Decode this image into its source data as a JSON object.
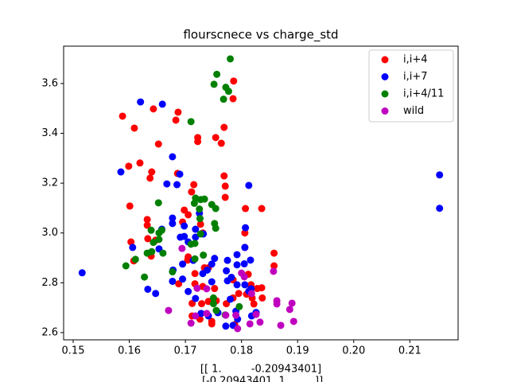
{
  "chart_data": {
    "type": "scatter",
    "title": "flourscnece vs charge_std",
    "xlabel": [
      "[[ 1.         -0.20943401]",
      " [-0.20943401  1.        ]]"
    ],
    "xlim": [
      0.1483,
      0.2186
    ],
    "ylim": [
      2.571,
      3.75
    ],
    "xticks": [
      0.15,
      0.16,
      0.17,
      0.18,
      0.19,
      {
        "value": 0.2,
        "label": "0.20"
      },
      0.21
    ],
    "yticks": [
      2.6,
      2.8,
      {
        "value": 3,
        "label": "3.0"
      },
      3.2,
      3.4,
      3.6
    ],
    "legend": "upper right",
    "series": [
      {
        "name": "i,i+4",
        "color": "#ff0000",
        "x": [
          0.1588,
          0.1609,
          0.1643,
          0.1687,
          0.1683,
          0.1786,
          0.1769,
          0.1722,
          0.1722,
          0.1754,
          0.1764,
          0.1785,
          0.1652,
          0.1619,
          0.1599,
          0.164,
          0.1637,
          0.1686,
          0.1769,
          0.1771,
          0.1715,
          0.1711,
          0.1771,
          0.1601,
          0.1807,
          0.1836,
          0.1698,
          0.1705,
          0.1632,
          0.1632,
          0.1695,
          0.1727,
          0.1731,
          0.1806,
          0.1633,
          0.1647,
          0.1603,
          0.1639,
          0.1806,
          0.1858,
          0.1858,
          0.1608,
          0.1704,
          0.1705,
          0.1734,
          0.1717,
          0.1741,
          0.1812,
          0.1817,
          0.1717,
          0.1688,
          0.1731,
          0.1752,
          0.1785,
          0.1817,
          0.1828,
          0.1795,
          0.1836,
          0.1837,
          0.1819,
          0.1712,
          0.1729,
          0.1741,
          0.1755,
          0.1773,
          0.1785,
          0.1809,
          0.1712,
          0.1726,
          0.1747,
          0.1747,
          0.1788,
          0.1822
        ],
        "values": [
          3.469,
          3.421,
          3.498,
          3.485,
          3.453,
          3.61,
          3.424,
          3.383,
          3.367,
          3.383,
          3.36,
          3.539,
          3.357,
          3.281,
          3.268,
          3.245,
          3.22,
          3.239,
          3.229,
          3.188,
          3.194,
          3.165,
          3.143,
          3.108,
          3.098,
          3.098,
          3.092,
          3.073,
          3.054,
          3.031,
          3.044,
          3.035,
          3.0,
          3.0,
          2.977,
          2.971,
          2.964,
          2.907,
          2.942,
          2.919,
          2.868,
          2.888,
          2.891,
          2.904,
          2.86,
          2.837,
          2.86,
          2.834,
          2.792,
          2.796,
          2.796,
          2.785,
          2.777,
          2.812,
          2.78,
          2.777,
          2.757,
          2.78,
          2.739,
          2.739,
          2.717,
          2.716,
          2.725,
          2.728,
          2.716,
          2.739,
          2.754,
          2.667,
          2.654,
          2.645,
          2.635,
          2.632,
          2.715
        ]
      },
      {
        "name": "i,i+7",
        "color": "#0000ff",
        "x": [
          0.162,
          0.1659,
          0.1585,
          0.1667,
          0.1685,
          0.1677,
          0.169,
          0.1813,
          0.2153,
          0.2153,
          0.1516,
          0.1606,
          0.1677,
          0.1677,
          0.1658,
          0.1698,
          0.1718,
          0.1718,
          0.1691,
          0.1698,
          0.1732,
          0.1725,
          0.1705,
          0.1653,
          0.1633,
          0.1647,
          0.1677,
          0.1695,
          0.1678,
          0.1714,
          0.1695,
          0.1752,
          0.1747,
          0.1775,
          0.1792,
          0.1806,
          0.1807,
          0.1773,
          0.1792,
          0.1805,
          0.1816,
          0.1739,
          0.1731,
          0.1775,
          0.1782,
          0.1792,
          0.1806,
          0.1813,
          0.1817,
          0.1705,
          0.1718,
          0.1728,
          0.1741,
          0.1758,
          0.178,
          0.179,
          0.1793,
          0.1785,
          0.1772,
          0.1818,
          0.1826,
          0.1747
        ],
        "values": [
          3.526,
          3.517,
          3.245,
          3.197,
          3.194,
          3.306,
          3.236,
          3.191,
          3.233,
          3.099,
          2.84,
          2.942,
          3.06,
          3.038,
          3.015,
          3.028,
          3.015,
          2.983,
          2.983,
          2.986,
          2.996,
          3.079,
          2.964,
          2.936,
          2.774,
          2.757,
          2.806,
          2.815,
          2.851,
          2.89,
          2.875,
          2.898,
          2.875,
          2.89,
          2.913,
          2.942,
          3.021,
          2.848,
          2.872,
          2.876,
          2.891,
          2.851,
          2.837,
          2.808,
          2.822,
          2.792,
          2.792,
          2.766,
          2.776,
          2.765,
          2.737,
          2.677,
          2.667,
          2.68,
          2.734,
          2.686,
          2.654,
          2.629,
          2.626,
          2.667,
          2.681,
          2.804
        ]
      },
      {
        "name": "i,i+4/11",
        "color": "#008000",
        "x": [
          0.178,
          0.1756,
          0.1751,
          0.1772,
          0.1777,
          0.1768,
          0.171,
          0.1652,
          0.1718,
          0.1727,
          0.1734,
          0.1716,
          0.1747,
          0.1754,
          0.1725,
          0.1726,
          0.1752,
          0.1754,
          0.1727,
          0.1658,
          0.1639,
          0.1653,
          0.1653,
          0.1643,
          0.171,
          0.1717,
          0.164,
          0.1632,
          0.166,
          0.1717,
          0.1732,
          0.1611,
          0.1594,
          0.1627,
          0.1677,
          0.175,
          0.175,
          0.1755,
          0.1771,
          0.1796
        ],
        "values": [
          3.699,
          3.637,
          3.597,
          3.585,
          3.569,
          3.537,
          3.447,
          3.121,
          3.14,
          3.134,
          3.136,
          3.119,
          3.114,
          3.098,
          3.096,
          3.058,
          3.038,
          3.019,
          2.996,
          3.011,
          3.011,
          3.0,
          2.974,
          2.962,
          2.955,
          2.958,
          2.925,
          2.919,
          2.919,
          2.896,
          2.911,
          2.894,
          2.868,
          2.823,
          2.844,
          2.716,
          2.739,
          2.689,
          2.671,
          2.704
        ]
      },
      {
        "name": "wild",
        "color": "#bf00bf",
        "x": [
          0.1694,
          0.1721,
          0.1738,
          0.18,
          0.1805,
          0.1818,
          0.1857,
          0.1863,
          0.1863,
          0.189,
          0.1886,
          0.1893,
          0.187,
          0.1833,
          0.1815,
          0.1826,
          0.179,
          0.1772,
          0.1738,
          0.1718,
          0.171,
          0.167,
          0.1793
        ],
        "values": [
          2.938,
          2.778,
          2.776,
          2.839,
          2.824,
          2.757,
          2.846,
          2.728,
          2.715,
          2.718,
          2.693,
          2.645,
          2.629,
          2.642,
          2.635,
          2.673,
          2.67,
          2.67,
          2.677,
          2.667,
          2.638,
          2.689,
          2.616
        ]
      }
    ]
  }
}
